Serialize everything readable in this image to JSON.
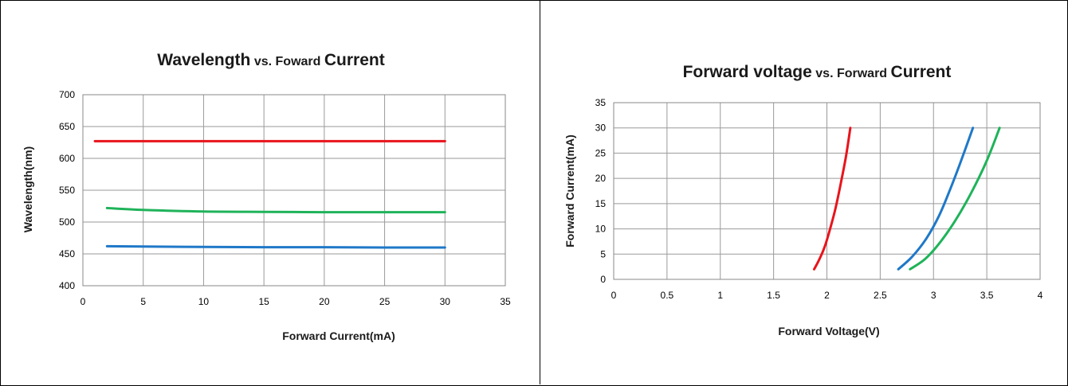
{
  "chart_data": [
    {
      "type": "line",
      "title": "Wavelength vs. Foward Current",
      "title_parts": [
        "Wavelength",
        "vs. Foward",
        "Current"
      ],
      "xlabel": "Forward Current(mA)",
      "ylabel": "Wavelength(nm)",
      "xlim": [
        0,
        35
      ],
      "ylim": [
        400,
        700
      ],
      "xticks": [
        0,
        5,
        10,
        15,
        20,
        25,
        30,
        35
      ],
      "yticks": [
        400,
        450,
        500,
        550,
        600,
        650,
        700
      ],
      "grid": true,
      "series": [
        {
          "color": "#e8141c",
          "x": [
            1,
            5,
            10,
            15,
            20,
            25,
            30
          ],
          "y": [
            627,
            627,
            627,
            627,
            627,
            627,
            627
          ]
        },
        {
          "color": "#1fb35a",
          "x": [
            2,
            5,
            10,
            15,
            20,
            25,
            30
          ],
          "y": [
            522,
            519,
            516.5,
            516,
            515.5,
            515.5,
            515.5
          ]
        },
        {
          "color": "#1f78c8",
          "x": [
            2,
            5,
            10,
            15,
            20,
            25,
            30
          ],
          "y": [
            462,
            461.5,
            461,
            460.5,
            460.5,
            460,
            460
          ]
        }
      ]
    },
    {
      "type": "line",
      "title": "Forward voltage vs. Forward Current",
      "title_parts": [
        "Forward voltage",
        "vs. Forward",
        "Current"
      ],
      "xlabel": "Forward Voltage(V)",
      "ylabel": "Forward Current(mA)",
      "xlim": [
        0,
        4
      ],
      "ylim": [
        0,
        35
      ],
      "xticks": [
        0,
        0.5,
        1,
        1.5,
        2,
        2.5,
        3,
        3.5,
        4
      ],
      "yticks": [
        0,
        5,
        10,
        15,
        20,
        25,
        30,
        35
      ],
      "grid": true,
      "series": [
        {
          "color": "#e8141c",
          "x": [
            1.88,
            1.93,
            1.98,
            2.03,
            2.08,
            2.13,
            2.18,
            2.22
          ],
          "y": [
            2,
            4,
            6.5,
            10,
            14,
            19,
            24.5,
            30
          ]
        },
        {
          "color": "#1f78c8",
          "x": [
            2.67,
            2.8,
            2.93,
            3.05,
            3.15,
            3.25,
            3.37
          ],
          "y": [
            2,
            4.5,
            8,
            12.5,
            17.5,
            23,
            30
          ]
        },
        {
          "color": "#1fb35a",
          "x": [
            2.78,
            2.92,
            3.05,
            3.2,
            3.35,
            3.5,
            3.62
          ],
          "y": [
            2,
            4,
            7,
            11.5,
            17,
            23.5,
            30
          ]
        }
      ]
    }
  ]
}
